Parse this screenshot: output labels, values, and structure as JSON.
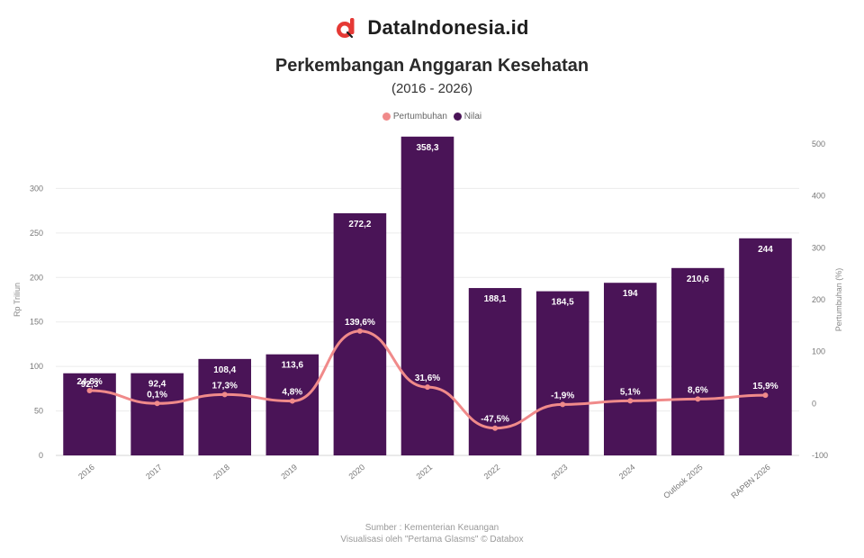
{
  "brand": {
    "name": "DataIndonesia.id",
    "logo_icon": "dataindonesia-logo-icon",
    "logo_color": "#e53935"
  },
  "chart_data": {
    "type": "bar",
    "title": "Perkembangan Anggaran Kesehatan",
    "subtitle": "(2016 - 2026)",
    "categories": [
      "2016",
      "2017",
      "2018",
      "2019",
      "2020",
      "2021",
      "2022",
      "2023",
      "2024",
      "Outlook 2025",
      "RAPBN 2026"
    ],
    "series": [
      {
        "name": "Nilai",
        "kind": "bar",
        "axis": "left",
        "color": "#4a1457",
        "values": [
          92.3,
          92.4,
          108.4,
          113.6,
          272.2,
          358.3,
          188.1,
          184.5,
          194,
          210.6,
          244
        ],
        "labels": [
          "92,3",
          "92,4",
          "108,4",
          "113,6",
          "272,2",
          "358,3",
          "188,1",
          "184,5",
          "194",
          "210,6",
          "244"
        ]
      },
      {
        "name": "Pertumbuhan",
        "kind": "line",
        "axis": "right",
        "color": "#f08a8a",
        "values": [
          24.8,
          0.1,
          17.3,
          4.8,
          139.6,
          31.6,
          -47.5,
          -1.9,
          5.1,
          8.6,
          15.9
        ],
        "labels": [
          "24,8%",
          "0,1%",
          "17,3%",
          "4,8%",
          "139,6%",
          "31,6%",
          "-47,5%",
          "-1,9%",
          "5,1%",
          "8,6%",
          "15,9%"
        ]
      }
    ],
    "ylabel": "Rp Triliun",
    "ylabel_right": "Pertumbuhan (%)",
    "ylim": [
      0,
      350
    ],
    "yticks": [
      0,
      50,
      100,
      150,
      200,
      250,
      300
    ],
    "ylim_right": [
      -100,
      500
    ],
    "yticks_right": [
      -100,
      0,
      100,
      200,
      300,
      400,
      500
    ],
    "grid": true,
    "legend_position": "top"
  },
  "source": {
    "line1": "Sumber : Kementerian Keuangan",
    "line2": "Visualisasi oleh \"Pertama Glasms\" © Databox"
  }
}
